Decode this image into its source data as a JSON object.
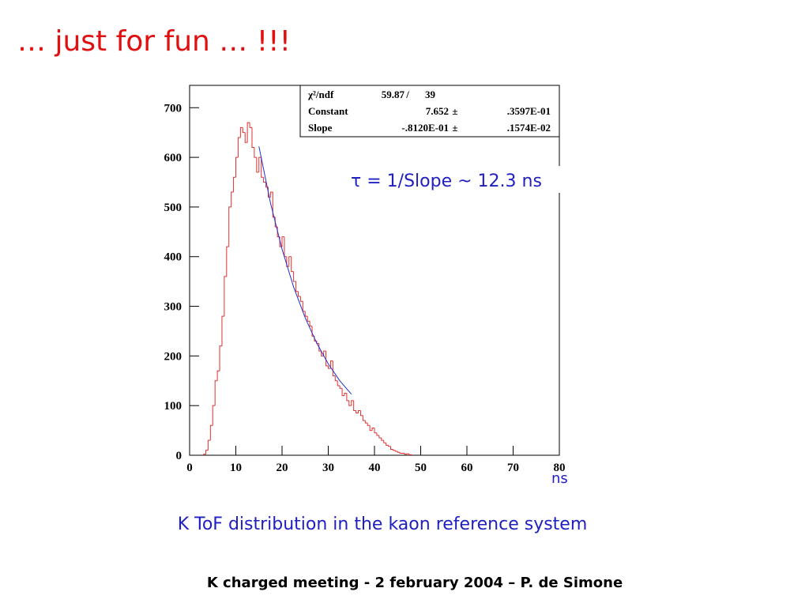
{
  "slide": {
    "title": "… just for fun … !!!",
    "caption": "K ToF distribution in the kaon reference system",
    "footer": "K charged meeting  - 2 february 2004  – P. de Simone"
  },
  "chart_data": {
    "type": "histogram",
    "bins": [
      3.0,
      3.5,
      4.0,
      4.5,
      5.0,
      5.5,
      6.0,
      6.5,
      7.0,
      7.5,
      8.0,
      8.5,
      9.0,
      9.5,
      10.0,
      10.5,
      11.0,
      11.5,
      12.0,
      12.5,
      13.0,
      13.5,
      14.0,
      14.5,
      15.0,
      15.5,
      16.0,
      16.5,
      17.0,
      17.5,
      18.0,
      18.5,
      19.0,
      19.5,
      20.0,
      20.5,
      21.0,
      21.5,
      22.0,
      22.5,
      23.0,
      23.5,
      24.0,
      24.5,
      25.0,
      25.5,
      26.0,
      26.5,
      27.0,
      27.5,
      28.0,
      28.5,
      29.0,
      29.5,
      30.0,
      30.5,
      31.0,
      31.5,
      32.0,
      32.5,
      33.0,
      33.5,
      34.0,
      34.5,
      35.0,
      35.5,
      36.0,
      36.5,
      37.0,
      37.5,
      38.0,
      38.5,
      39.0,
      39.5,
      40.0,
      40.5,
      41.0,
      41.5,
      42.0,
      42.5,
      43.0,
      43.5,
      44.0,
      44.5,
      45.0,
      45.5,
      46.0,
      46.5,
      47.0,
      47.5,
      48.0
    ],
    "counts": [
      2,
      10,
      30,
      60,
      100,
      150,
      170,
      220,
      280,
      360,
      420,
      500,
      530,
      560,
      600,
      640,
      660,
      650,
      630,
      670,
      660,
      620,
      600,
      570,
      600,
      560,
      550,
      540,
      520,
      530,
      480,
      460,
      440,
      420,
      440,
      400,
      380,
      400,
      370,
      350,
      330,
      320,
      310,
      290,
      280,
      270,
      260,
      240,
      230,
      225,
      210,
      200,
      210,
      180,
      175,
      190,
      160,
      150,
      140,
      135,
      120,
      125,
      110,
      100,
      110,
      90,
      85,
      90,
      80,
      70,
      65,
      60,
      50,
      55,
      45,
      40,
      35,
      30,
      25,
      20,
      18,
      12,
      10,
      8,
      6,
      4,
      4,
      2,
      3,
      1
    ],
    "color": "#e03030",
    "fit": {
      "x": [
        15,
        17.5,
        20,
        22.5,
        25,
        27.5,
        30,
        32.5,
        35
      ],
      "values": [
        622,
        508,
        415,
        339,
        277,
        226,
        184,
        150,
        123
      ],
      "color": "#2030d0"
    },
    "xlim": [
      0,
      80
    ],
    "xticks": [
      0,
      10,
      20,
      30,
      40,
      50,
      60,
      70,
      80
    ],
    "ylim": [
      0,
      745
    ],
    "yticks": [
      0,
      100,
      200,
      300,
      400,
      500,
      600,
      700
    ],
    "x_label": "ns",
    "annotation": "τ =  1/Slope  ~  12.3 ns",
    "stats_box": [
      [
        "χ²/ndf",
        "59.87",
        "/",
        "39"
      ],
      [
        "Constant",
        "7.652",
        "±",
        ".3597E-01"
      ],
      [
        "Slope",
        "-.8120E-01",
        "±",
        ".1574E-02"
      ]
    ]
  }
}
